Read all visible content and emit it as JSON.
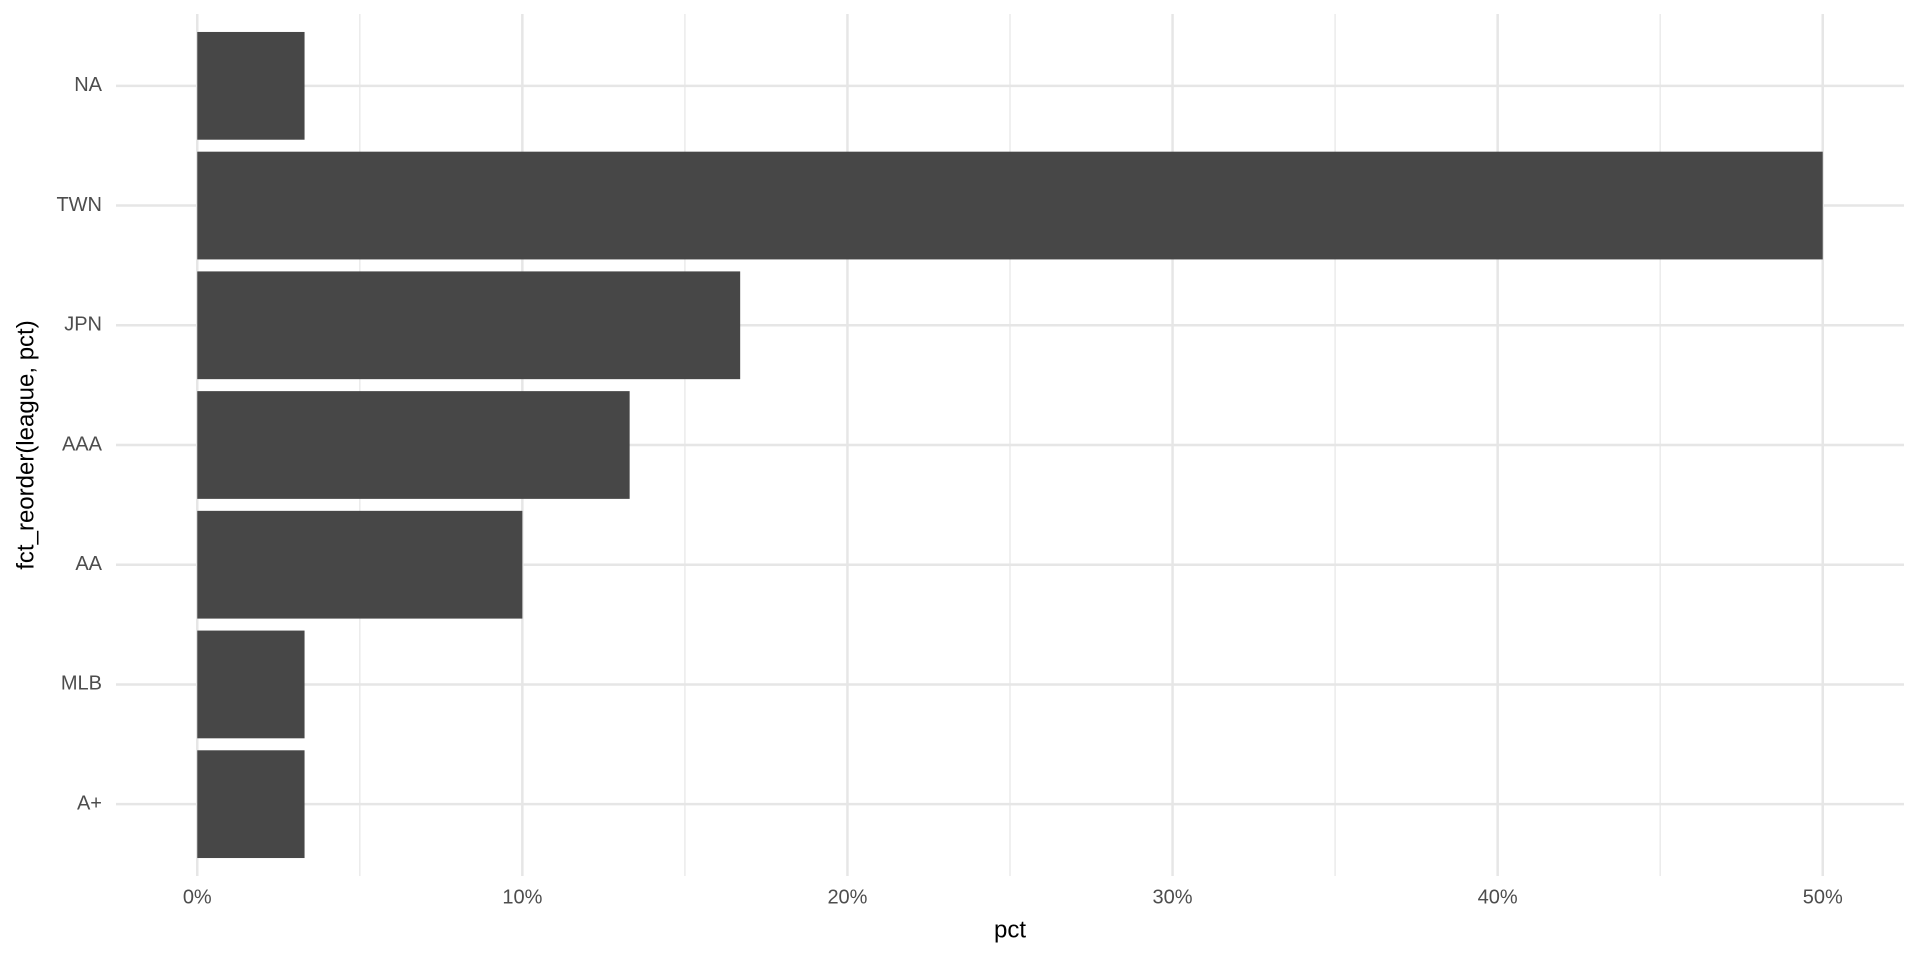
{
  "chart_data": {
    "type": "bar",
    "orientation": "horizontal",
    "x_label": "pct",
    "y_label": "fct_reorder(league, pct)",
    "categories": [
      "NA",
      "TWN",
      "JPN",
      "AAA",
      "AA",
      "MLB",
      "A+"
    ],
    "values": [
      3.3,
      50,
      16.7,
      13.3,
      10,
      3.3,
      3.3
    ],
    "color": "#474747",
    "xlim": [
      -2.5,
      52.5
    ],
    "xticks": [
      {
        "value": 0,
        "label": "0%"
      },
      {
        "value": 10,
        "label": "10%"
      },
      {
        "value": 20,
        "label": "20%"
      },
      {
        "value": 30,
        "label": "30%"
      },
      {
        "value": 40,
        "label": "40%"
      },
      {
        "value": 50,
        "label": "50%"
      }
    ],
    "xminor": [
      5,
      15,
      25,
      35,
      45
    ],
    "grid": true
  }
}
